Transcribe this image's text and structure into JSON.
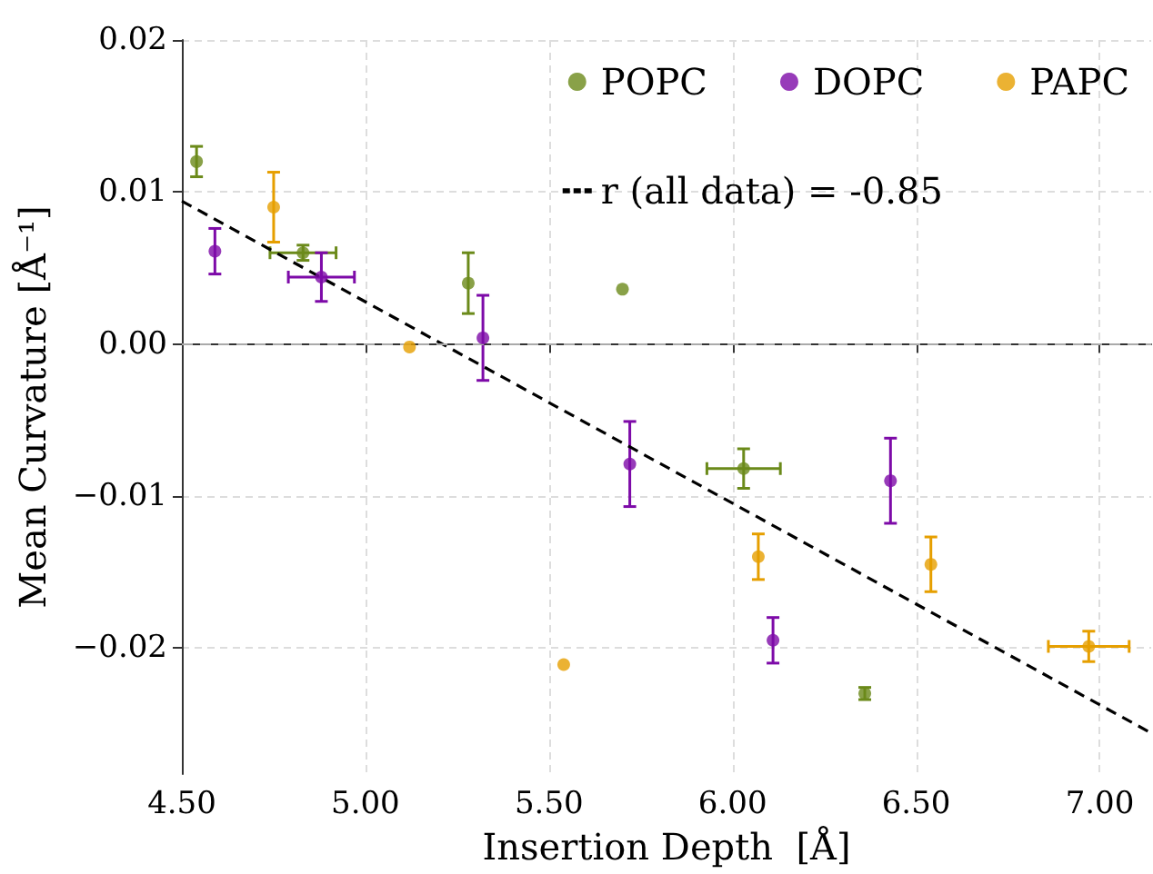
{
  "chart_data": {
    "type": "scatter",
    "xlabel": "Insertion Depth  [Å]",
    "ylabel": "Mean Curvature [Å⁻¹]",
    "xlim": [
      4.5,
      7.14
    ],
    "xticks": [
      {
        "value": 4.5,
        "label": "4.50"
      },
      {
        "value": 5.0,
        "label": "5.00"
      },
      {
        "value": 5.5,
        "label": "5.50"
      },
      {
        "value": 6.0,
        "label": "6.00"
      },
      {
        "value": 6.5,
        "label": "6.50"
      },
      {
        "value": 7.0,
        "label": "7.00"
      }
    ],
    "ylim": [
      -0.0283,
      0.02
    ],
    "yticks": [
      {
        "value": -0.02,
        "label": "−0.02"
      },
      {
        "value": -0.01,
        "label": "−0.01"
      },
      {
        "value": 0,
        "label": "0.00"
      },
      {
        "value": 0.01,
        "label": "0.01"
      },
      {
        "value": 0.02,
        "label": "0.02"
      }
    ],
    "grid": true,
    "legend": "top right",
    "marker": "circle",
    "ref_lines": [
      {
        "axis": "y",
        "value": 0,
        "color": "#aaaaaa",
        "line_style": "dashed"
      }
    ],
    "series": [
      {
        "name": "POPC",
        "color": "#6b8a1a",
        "x": [
          4.54,
          4.83,
          5.28,
          5.7,
          6.03,
          6.36
        ],
        "values": [
          0.012,
          0.006,
          0.004,
          0.0036,
          -0.0082,
          -0.023
        ],
        "errors": [
          0.001,
          0.0005,
          0.002,
          null,
          0.0013,
          0.0004
        ],
        "xerrors": [
          null,
          0.09,
          null,
          null,
          0.1,
          null
        ]
      },
      {
        "name": "DOPC",
        "color": "#7d0aa8",
        "x": [
          4.59,
          4.88,
          5.32,
          5.72,
          6.11,
          6.43
        ],
        "values": [
          0.0061,
          0.0044,
          0.0004,
          -0.0079,
          -0.0195,
          -0.009
        ],
        "errors": [
          0.0015,
          0.0016,
          0.0028,
          0.0028,
          0.0015,
          0.0028
        ],
        "xerrors": [
          null,
          0.09,
          null,
          null,
          null,
          null
        ]
      },
      {
        "name": "PAPC",
        "color": "#e69f00",
        "x": [
          4.75,
          5.12,
          5.54,
          6.07,
          6.54,
          6.97
        ],
        "values": [
          0.009,
          -0.0002,
          -0.0211,
          -0.014,
          -0.0145,
          -0.0199
        ],
        "errors": [
          0.0023,
          null,
          null,
          0.0015,
          0.0018,
          0.001
        ],
        "xerrors": [
          null,
          null,
          null,
          null,
          null,
          0.11
        ]
      },
      {
        "name": "r (all data) = -0.85",
        "type": "line",
        "color": "#000000",
        "line_style": "dashed",
        "marker": "none",
        "x": [
          4.5,
          7.14
        ],
        "values": [
          0.0094,
          -0.0256
        ]
      }
    ]
  }
}
